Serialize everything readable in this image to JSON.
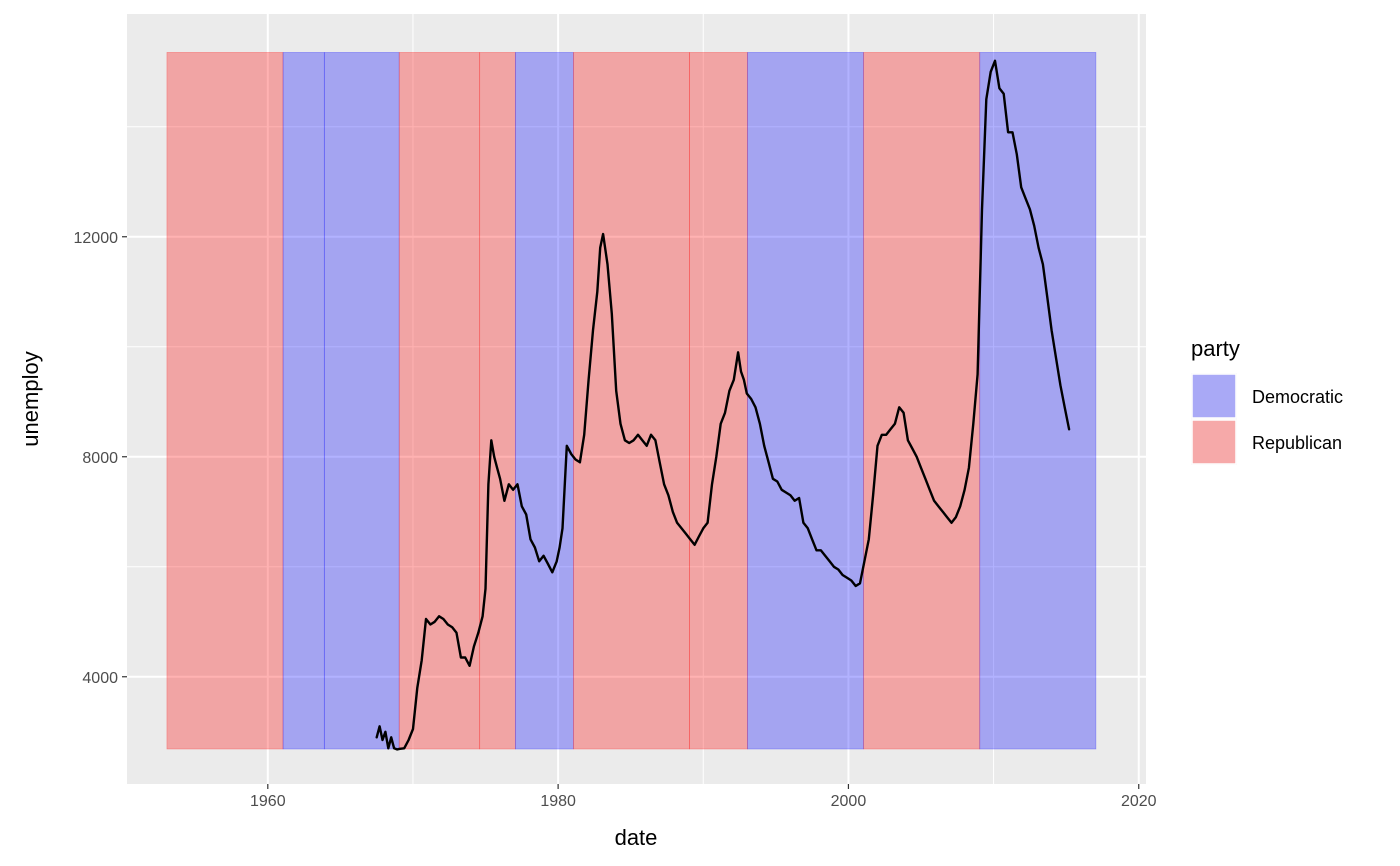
{
  "chart_data": {
    "type": "line",
    "title": "",
    "xlabel": "date",
    "ylabel": "unemploy",
    "xlim": [
      1950.3,
      2020.5
    ],
    "ylim": [
      2050,
      16050
    ],
    "x_ticks": [
      1960,
      1980,
      2000,
      2020
    ],
    "y_ticks": [
      4000,
      8000,
      12000
    ],
    "grid": true,
    "background": "#EBEBEB",
    "legend": {
      "title": "party",
      "placement": "right",
      "entries": [
        {
          "label": "Democratic",
          "color": "#0000FF",
          "alpha": 0.3
        },
        {
          "label": "Republican",
          "color": "#FF0000",
          "alpha": 0.3
        }
      ]
    },
    "rect_ymin": 2686,
    "rect_ymax": 15352,
    "presidential_terms": [
      {
        "start": 1953.05,
        "end": 1961.05,
        "party": "Republican"
      },
      {
        "start": 1961.05,
        "end": 1963.89,
        "party": "Democratic"
      },
      {
        "start": 1963.89,
        "end": 1969.05,
        "party": "Democratic"
      },
      {
        "start": 1969.05,
        "end": 1974.6,
        "party": "Republican"
      },
      {
        "start": 1974.6,
        "end": 1977.05,
        "party": "Republican"
      },
      {
        "start": 1977.05,
        "end": 1981.05,
        "party": "Democratic"
      },
      {
        "start": 1981.05,
        "end": 1989.05,
        "party": "Republican"
      },
      {
        "start": 1989.05,
        "end": 1993.05,
        "party": "Republican"
      },
      {
        "start": 1993.05,
        "end": 2001.05,
        "party": "Democratic"
      },
      {
        "start": 2001.05,
        "end": 2009.05,
        "party": "Republican"
      },
      {
        "start": 2009.05,
        "end": 2017.05,
        "party": "Democratic"
      }
    ],
    "series": [
      {
        "line_color": "#000000",
        "x": [
          1967.5,
          1967.7,
          1967.9,
          1968.1,
          1968.3,
          1968.5,
          1968.7,
          1968.9,
          1969.1,
          1969.4,
          1969.7,
          1970.0,
          1970.3,
          1970.6,
          1970.9,
          1971.2,
          1971.5,
          1971.8,
          1972.1,
          1972.4,
          1972.7,
          1973.0,
          1973.3,
          1973.6,
          1973.9,
          1974.2,
          1974.5,
          1974.8,
          1975.0,
          1975.2,
          1975.4,
          1975.6,
          1975.8,
          1976.0,
          1976.3,
          1976.6,
          1976.9,
          1977.2,
          1977.5,
          1977.8,
          1978.1,
          1978.4,
          1978.7,
          1979.0,
          1979.3,
          1979.6,
          1979.9,
          1980.1,
          1980.3,
          1980.6,
          1980.9,
          1981.2,
          1981.5,
          1981.8,
          1982.1,
          1982.4,
          1982.7,
          1982.9,
          1983.1,
          1983.4,
          1983.7,
          1984.0,
          1984.3,
          1984.6,
          1984.9,
          1985.2,
          1985.5,
          1985.8,
          1986.1,
          1986.4,
          1986.7,
          1987.0,
          1987.3,
          1987.6,
          1987.9,
          1988.2,
          1988.5,
          1988.8,
          1989.1,
          1989.4,
          1989.7,
          1990.0,
          1990.3,
          1990.6,
          1990.9,
          1991.2,
          1991.5,
          1991.8,
          1992.1,
          1992.4,
          1992.6,
          1992.8,
          1993.0,
          1993.3,
          1993.6,
          1993.9,
          1994.2,
          1994.5,
          1994.8,
          1995.1,
          1995.4,
          1995.7,
          1996.0,
          1996.3,
          1996.6,
          1996.9,
          1997.2,
          1997.5,
          1997.8,
          1998.1,
          1998.4,
          1998.7,
          1999.0,
          1999.3,
          1999.6,
          1999.9,
          2000.2,
          2000.5,
          2000.8,
          2001.1,
          2001.4,
          2001.7,
          2002.0,
          2002.3,
          2002.6,
          2002.9,
          2003.2,
          2003.5,
          2003.8,
          2004.1,
          2004.4,
          2004.7,
          2005.0,
          2005.3,
          2005.6,
          2005.9,
          2006.2,
          2006.5,
          2006.8,
          2007.1,
          2007.4,
          2007.7,
          2008.0,
          2008.3,
          2008.6,
          2008.9,
          2009.2,
          2009.5,
          2009.8,
          2010.1,
          2010.4,
          2010.7,
          2011.0,
          2011.3,
          2011.6,
          2011.9,
          2012.2,
          2012.5,
          2012.8,
          2013.1,
          2013.4,
          2013.7,
          2014.0,
          2014.3,
          2014.6,
          2014.9,
          2015.2
        ],
        "y": [
          2900,
          3100,
          2850,
          3000,
          2700,
          2900,
          2700,
          2680,
          2690,
          2700,
          2850,
          3050,
          3800,
          4300,
          5050,
          4950,
          5000,
          5100,
          5050,
          4950,
          4900,
          4800,
          4350,
          4350,
          4200,
          4550,
          4800,
          5100,
          5600,
          7500,
          8300,
          8000,
          7800,
          7600,
          7200,
          7500,
          7400,
          7500,
          7100,
          6950,
          6500,
          6350,
          6100,
          6200,
          6050,
          5900,
          6100,
          6350,
          6700,
          8200,
          8050,
          7950,
          7900,
          8400,
          9400,
          10300,
          11000,
          11800,
          12050,
          11500,
          10600,
          9200,
          8600,
          8300,
          8250,
          8300,
          8400,
          8300,
          8200,
          8400,
          8300,
          7900,
          7500,
          7300,
          7000,
          6800,
          6700,
          6600,
          6500,
          6400,
          6550,
          6700,
          6800,
          7500,
          8000,
          8600,
          8800,
          9200,
          9400,
          9900,
          9550,
          9400,
          9150,
          9050,
          8900,
          8600,
          8200,
          7900,
          7600,
          7550,
          7400,
          7350,
          7300,
          7200,
          7250,
          6800,
          6700,
          6500,
          6300,
          6300,
          6200,
          6100,
          6000,
          5950,
          5850,
          5800,
          5750,
          5650,
          5700,
          6100,
          6500,
          7300,
          8200,
          8400,
          8400,
          8500,
          8600,
          8900,
          8800,
          8300,
          8150,
          8000,
          7800,
          7600,
          7400,
          7200,
          7100,
          7000,
          6900,
          6800,
          6900,
          7100,
          7400,
          7800,
          8600,
          9500,
          12500,
          14500,
          15000,
          15200,
          14700,
          14600,
          13900,
          13900,
          13500,
          12900,
          12700,
          12500,
          12200,
          11800,
          11500,
          10900,
          10300,
          9800,
          9300,
          8900,
          8500
        ]
      }
    ]
  }
}
